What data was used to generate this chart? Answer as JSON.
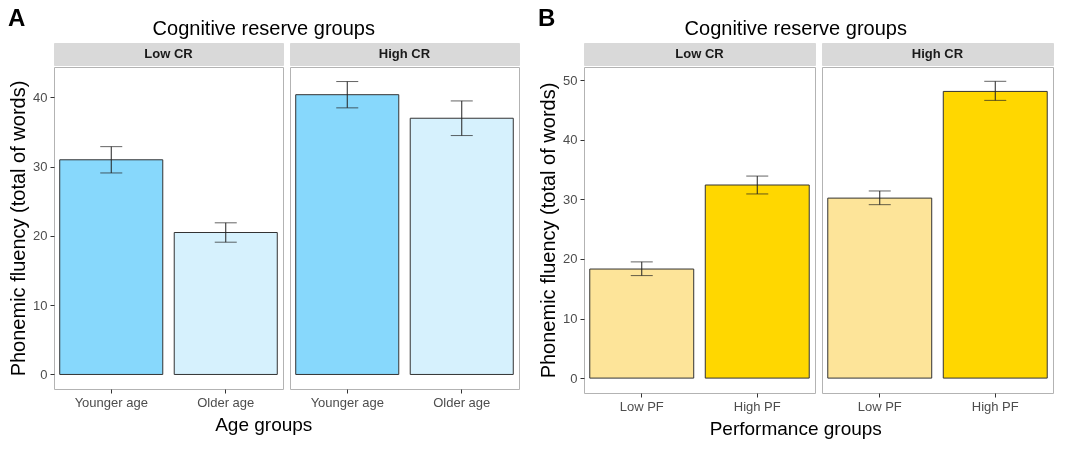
{
  "chart_data": [
    {
      "type": "bar",
      "title": "Low CR",
      "annotations": [
        "A",
        "Cognitive reserve groups"
      ],
      "xlabel": "Age groups",
      "ylabel": "Phonemic fluency (total of words)",
      "categories": [
        "Younger age",
        "Older age"
      ],
      "values": [
        31.0,
        20.5
      ],
      "colors": [
        "#87d8fc",
        "#d6f1fd"
      ],
      "errors": [
        [
          29.1,
          32.9
        ],
        [
          19.1,
          21.9
        ]
      ],
      "ylim": [
        -2.1,
        44.4
      ],
      "yticks": [
        0,
        10,
        20,
        30,
        40
      ]
    },
    {
      "type": "bar",
      "title": "High CR",
      "categories": [
        "Younger age",
        "Older age"
      ],
      "values": [
        40.4,
        37.0
      ],
      "colors": [
        "#87d8fc",
        "#d6f1fd"
      ],
      "errors": [
        [
          38.5,
          42.3
        ],
        [
          34.5,
          39.5
        ]
      ],
      "ylim": [
        -2.1,
        44.4
      ],
      "yticks": [
        0,
        10,
        20,
        30,
        40
      ],
      "tick_labels": "x"
    },
    {
      "type": "bar",
      "title": "Low CR",
      "annotations": [
        "B",
        "Cognitive reserve groups"
      ],
      "xlabel": "Performance groups",
      "ylabel": "Phonemic fluency (total of words)",
      "categories": [
        "Low PF",
        "High PF"
      ],
      "values": [
        18.3,
        32.4
      ],
      "colors": [
        "#fde499",
        "#ffd700"
      ],
      "errors": [
        [
          17.2,
          19.5
        ],
        [
          30.9,
          33.9
        ]
      ],
      "ylim": [
        -2.5,
        52.2
      ],
      "yticks": [
        0,
        10,
        20,
        30,
        40,
        50
      ]
    },
    {
      "type": "bar",
      "title": "High CR",
      "categories": [
        "Low PF",
        "High PF"
      ],
      "values": [
        30.2,
        48.1
      ],
      "colors": [
        "#fde499",
        "#ffd700"
      ],
      "errors": [
        [
          29.1,
          31.4
        ],
        [
          46.6,
          49.8
        ]
      ],
      "ylim": [
        -2.5,
        52.2
      ],
      "yticks": [
        0,
        10,
        20,
        30,
        40,
        50
      ],
      "tick_labels": "x"
    }
  ]
}
